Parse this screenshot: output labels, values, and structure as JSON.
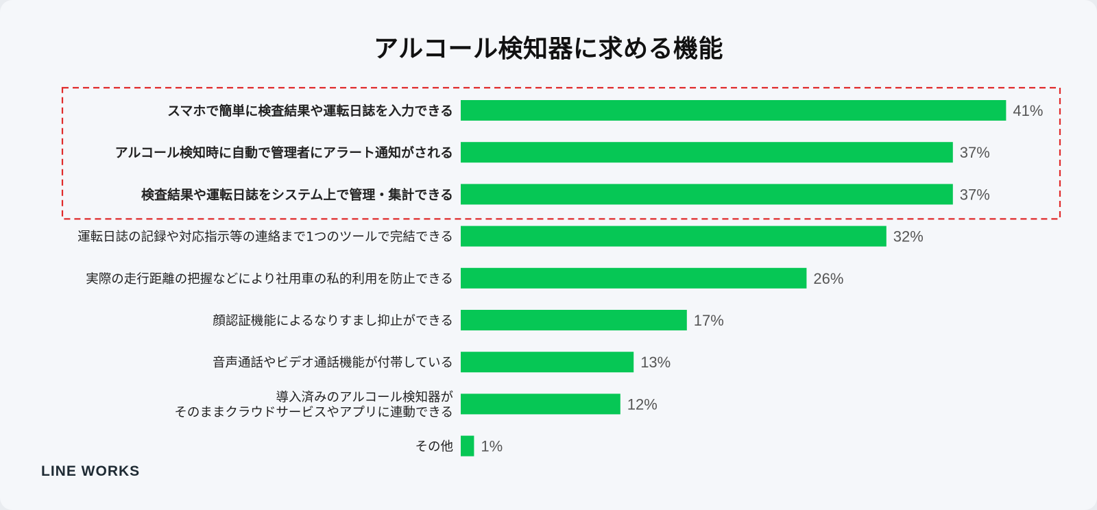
{
  "chart_data": {
    "type": "bar",
    "orientation": "horizontal",
    "title": "アルコール検知器に求める機能",
    "categories": [
      "スマホで簡単に検査結果や運転日誌を入力できる",
      "アルコール検知時に自動で管理者にアラート通知がされる",
      "検査結果や運転日誌をシステム上で管理・集計できる",
      "運転日誌の記録や対応指示等の連絡まで1つのツールで完結できる",
      "実際の走行距離の把握などにより社用車の私的利用を防止できる",
      "顔認証機能によるなりすまし抑止ができる",
      "音声通話やビデオ通話機能が付帯している",
      "導入済みのアルコール検知器が\nそのままクラウドサービスやアプリに連動できる",
      "その他"
    ],
    "values": [
      41,
      37,
      37,
      32,
      26,
      17,
      13,
      12,
      1
    ],
    "value_labels": [
      "41%",
      "37%",
      "37%",
      "32%",
      "26%",
      "17%",
      "13%",
      "12%",
      "1%"
    ],
    "unit": "%",
    "bold_categories": [
      0,
      1,
      2
    ],
    "highlight": {
      "rows": [
        0,
        1,
        2
      ],
      "style": "dashed-red-box",
      "color": "#e02a2a"
    },
    "bar_color": "#06c755",
    "label_color": "#222222",
    "value_color": "#555555",
    "grid": false,
    "legend": "none"
  },
  "brand": {
    "logo_text": "LINE WORKS"
  }
}
